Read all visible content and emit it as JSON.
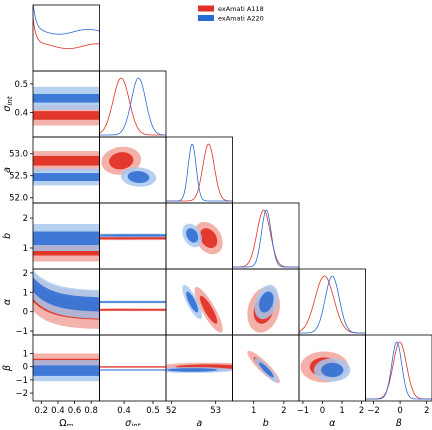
{
  "chart_data": {
    "type": "corner",
    "parameters": [
      {
        "key": "om",
        "label": "Ωm",
        "range": [
          0.1,
          0.9
        ],
        "ticks": [
          "0.2",
          "0.4",
          "0.6",
          "0.8"
        ],
        "tick_values": [
          0.2,
          0.4,
          0.6,
          0.8
        ]
      },
      {
        "key": "sig",
        "label": "σint",
        "range": [
          0.315,
          0.545
        ],
        "ticks": [
          "0.4",
          "0.5"
        ],
        "tick_values": [
          0.4,
          0.5
        ]
      },
      {
        "key": "a",
        "label": "a",
        "range": [
          51.88,
          53.38
        ],
        "ticks": [
          "52",
          "53"
        ],
        "tick_values": [
          52,
          53
        ]
      },
      {
        "key": "b",
        "label": "b",
        "range": [
          0.3,
          2.5
        ],
        "ticks": [
          "1",
          "2"
        ],
        "tick_values": [
          1,
          2
        ]
      },
      {
        "key": "alpha",
        "label": "α",
        "range": [
          -1.2,
          2.2
        ],
        "ticks": [
          "−1",
          "0",
          "1",
          "2"
        ],
        "tick_values": [
          -1,
          0,
          1,
          2
        ]
      },
      {
        "key": "beta",
        "label": "β",
        "range": [
          -2.6,
          2.4
        ],
        "ticks": [
          "−2",
          "0",
          "2"
        ],
        "tick_values": [
          -2,
          0,
          2
        ]
      }
    ],
    "row_ticks": {
      "sig": [
        "0.4",
        "0.5"
      ],
      "a": [
        "52.0",
        "52.5",
        "53.0"
      ],
      "b": [
        "1",
        "2"
      ],
      "alpha": [
        "−1",
        "0",
        "1",
        "2"
      ],
      "beta": [
        "−2",
        "−1",
        "0",
        "1"
      ]
    },
    "row_tick_values": {
      "sig": [
        0.4,
        0.5
      ],
      "a": [
        52.0,
        52.5,
        53.0
      ],
      "b": [
        1,
        2
      ],
      "alpha": [
        -1,
        0,
        1,
        2
      ],
      "beta": [
        -2,
        -1,
        0,
        1
      ]
    },
    "series": [
      {
        "name": "exAmati A118",
        "color": "#e03024",
        "light": "#f3aaa3",
        "mean": {
          "sig": 0.39,
          "a": 52.84,
          "b": 1.33,
          "alpha": 0.1,
          "beta": -0.02
        },
        "std": {
          "sig": 0.028,
          "a": 0.13,
          "b": 0.22,
          "alpha": 0.48,
          "beta": 0.5
        },
        "om_bands": {
          "sig": [
            0.375,
            0.405,
            0.355,
            0.425
          ],
          "a": [
            52.73,
            52.95,
            52.6,
            53.06
          ],
          "b": [
            0.75,
            1.1,
            0.55,
            1.3
          ],
          "beta": [
            0.1,
            0.6,
            -0.3,
            1.0
          ]
        }
      },
      {
        "name": "exAmati A220",
        "color": "#2a6ad4",
        "light": "#a8c8ee",
        "mean": {
          "sig": 0.45,
          "a": 52.47,
          "b": 1.42,
          "alpha": 0.5,
          "beta": -0.25
        },
        "std": {
          "sig": 0.025,
          "a": 0.09,
          "b": 0.16,
          "alpha": 0.36,
          "beta": 0.38
        },
        "om_bands": {
          "sig": [
            0.435,
            0.465,
            0.41,
            0.49
          ],
          "a": [
            52.38,
            52.56,
            52.28,
            52.66
          ],
          "b": [
            1.1,
            1.55,
            0.9,
            1.8
          ],
          "beta": [
            -0.7,
            0.1,
            -1.1,
            0.5
          ]
        }
      }
    ],
    "legend": {
      "placement": "top-center",
      "entries": [
        "exAmati A118",
        "exAmati A220"
      ]
    }
  }
}
